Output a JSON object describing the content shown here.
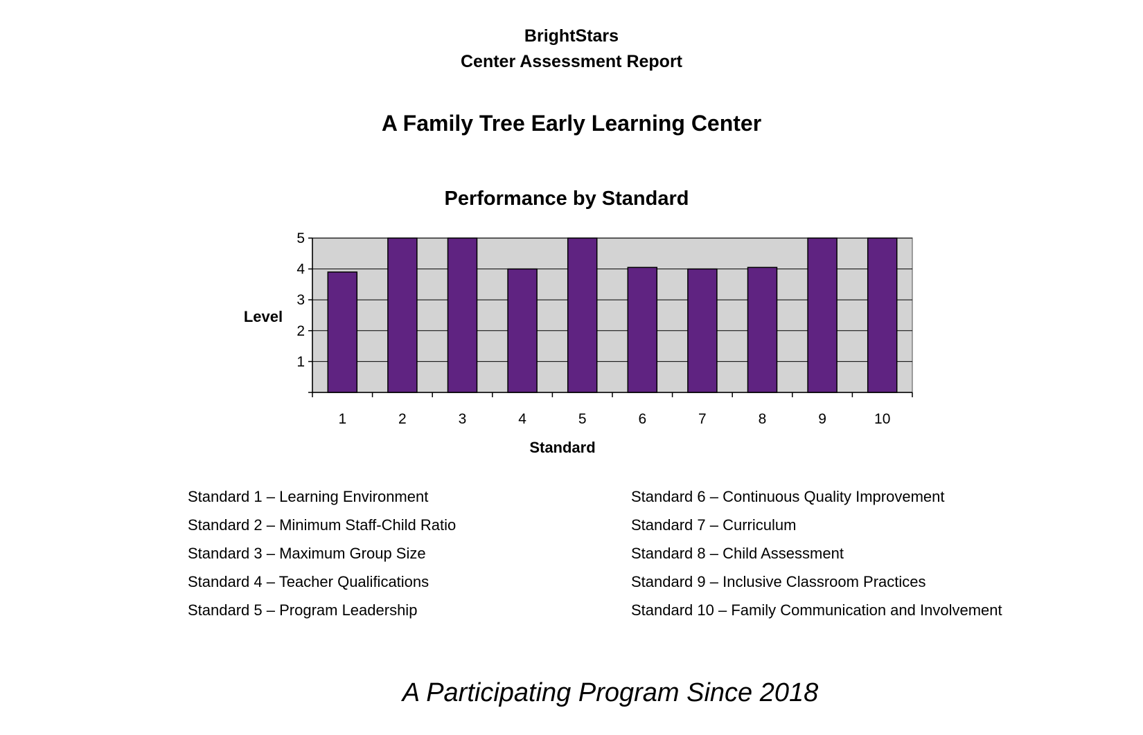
{
  "header": {
    "org_name": "BrightStars",
    "report_title": "Center Assessment Report",
    "center_name": "A Family Tree Early Learning Center"
  },
  "chart_data": {
    "type": "bar",
    "title": "Performance by Standard",
    "xlabel": "Standard",
    "ylabel": "Level",
    "categories": [
      "1",
      "2",
      "3",
      "4",
      "5",
      "6",
      "7",
      "8",
      "9",
      "10"
    ],
    "values": [
      3.9,
      5,
      5,
      4,
      5,
      4.05,
      4,
      4.05,
      5,
      5
    ],
    "ylim": [
      0,
      5
    ],
    "yticks": [
      1,
      2,
      3,
      4,
      5
    ],
    "grid": true,
    "bar_color": "#5f2381",
    "plot_background": "#d3d3d3"
  },
  "legend": {
    "left": [
      "Standard 1 – Learning Environment",
      "Standard 2 – Minimum Staff-Child Ratio",
      "Standard 3 – Maximum Group Size",
      "Standard 4 – Teacher Qualifications",
      "Standard 5 – Program Leadership"
    ],
    "right": [
      "Standard 6 – Continuous Quality Improvement",
      "Standard 7 – Curriculum",
      "Standard 8 – Child Assessment",
      "Standard 9 – Inclusive Classroom Practices",
      "Standard 10 – Family Communication and Involvement"
    ]
  },
  "footer": {
    "tagline": "A Participating Program Since 2018"
  }
}
